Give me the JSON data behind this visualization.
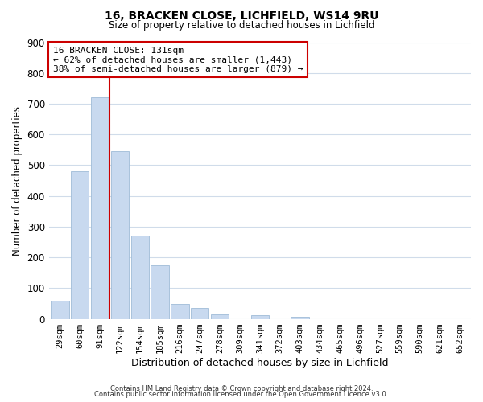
{
  "title": "16, BRACKEN CLOSE, LICHFIELD, WS14 9RU",
  "subtitle": "Size of property relative to detached houses in Lichfield",
  "xlabel": "Distribution of detached houses by size in Lichfield",
  "ylabel": "Number of detached properties",
  "bar_labels": [
    "29sqm",
    "60sqm",
    "91sqm",
    "122sqm",
    "154sqm",
    "185sqm",
    "216sqm",
    "247sqm",
    "278sqm",
    "309sqm",
    "341sqm",
    "372sqm",
    "403sqm",
    "434sqm",
    "465sqm",
    "496sqm",
    "527sqm",
    "559sqm",
    "590sqm",
    "621sqm",
    "652sqm"
  ],
  "bar_values": [
    60,
    480,
    720,
    545,
    272,
    175,
    48,
    35,
    15,
    0,
    12,
    0,
    8,
    0,
    0,
    0,
    0,
    0,
    0,
    0,
    0
  ],
  "bar_color": "#c8d9ef",
  "bar_edge_color": "#a0bcd8",
  "vline_x": 2.5,
  "vline_color": "#cc0000",
  "ylim": [
    0,
    900
  ],
  "yticks": [
    0,
    100,
    200,
    300,
    400,
    500,
    600,
    700,
    800,
    900
  ],
  "annotation_title": "16 BRACKEN CLOSE: 131sqm",
  "annotation_line1": "← 62% of detached houses are smaller (1,443)",
  "annotation_line2": "38% of semi-detached houses are larger (879) →",
  "annotation_box_color": "#ffffff",
  "annotation_box_edge": "#cc0000",
  "footer_line1": "Contains HM Land Registry data © Crown copyright and database right 2024.",
  "footer_line2": "Contains public sector information licensed under the Open Government Licence v3.0.",
  "background_color": "#ffffff",
  "grid_color": "#d0dcea"
}
